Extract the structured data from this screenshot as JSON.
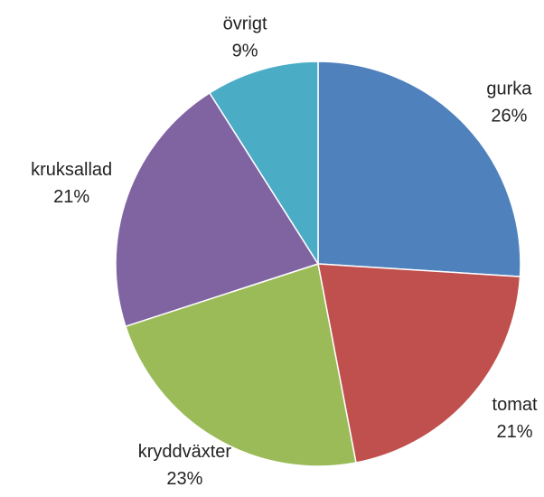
{
  "chart_data": {
    "type": "pie",
    "categories": [
      "gurka",
      "tomat",
      "kryddväxter",
      "kruksallad",
      "övrigt"
    ],
    "values": [
      26,
      21,
      23,
      21,
      9
    ],
    "value_labels": [
      "26%",
      "21%",
      "23%",
      "21%",
      "9%"
    ],
    "colors": [
      "#4f81bd",
      "#c0504d",
      "#9bbb59",
      "#8064a2",
      "#4bacc6"
    ]
  }
}
